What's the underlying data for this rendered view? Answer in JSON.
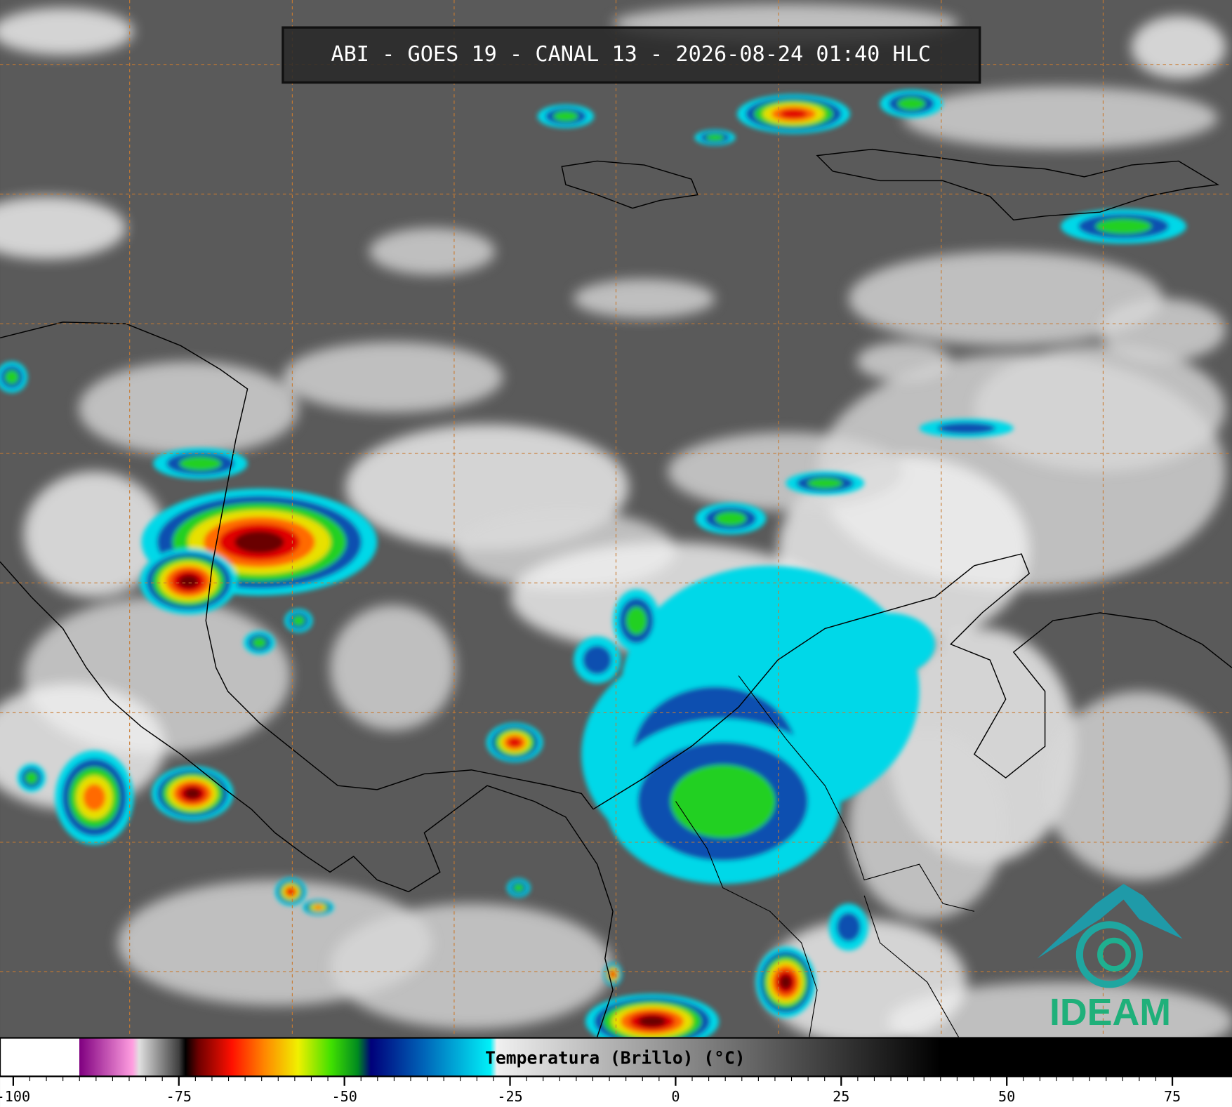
{
  "header": {
    "title": "ABI - GOES 19 - CANAL 13 - 2026-08-24 01:40 HLC"
  },
  "colorbar": {
    "label": "Temperatura (Brillo) (°C)",
    "lim": [
      -102,
      84
    ],
    "ticks": [
      -100,
      -75,
      -50,
      -25,
      0,
      25,
      50,
      75
    ],
    "stops": [
      {
        "value": -102,
        "color": "#ffffff"
      },
      {
        "value": -90,
        "color": "#ffffff"
      },
      {
        "value": -90,
        "color": "#800080"
      },
      {
        "value": -82,
        "color": "#ff9ee0"
      },
      {
        "value": -81,
        "color": "#e0e0e0"
      },
      {
        "value": -75,
        "color": "#404040"
      },
      {
        "value": -74,
        "color": "#000000"
      },
      {
        "value": -72,
        "color": "#700000"
      },
      {
        "value": -67,
        "color": "#ff1000"
      },
      {
        "value": -62,
        "color": "#ff8800"
      },
      {
        "value": -57,
        "color": "#f0f000"
      },
      {
        "value": -52,
        "color": "#40e000"
      },
      {
        "value": -48,
        "color": "#008a20"
      },
      {
        "value": -46,
        "color": "#00007a"
      },
      {
        "value": -38,
        "color": "#0064b8"
      },
      {
        "value": -28,
        "color": "#00f0f8"
      },
      {
        "value": -27,
        "color": "#f0f0f0"
      },
      {
        "value": 40,
        "color": "#000000"
      },
      {
        "value": 84,
        "color": "#000000"
      }
    ]
  },
  "logo": {
    "text": "IDEAM"
  }
}
